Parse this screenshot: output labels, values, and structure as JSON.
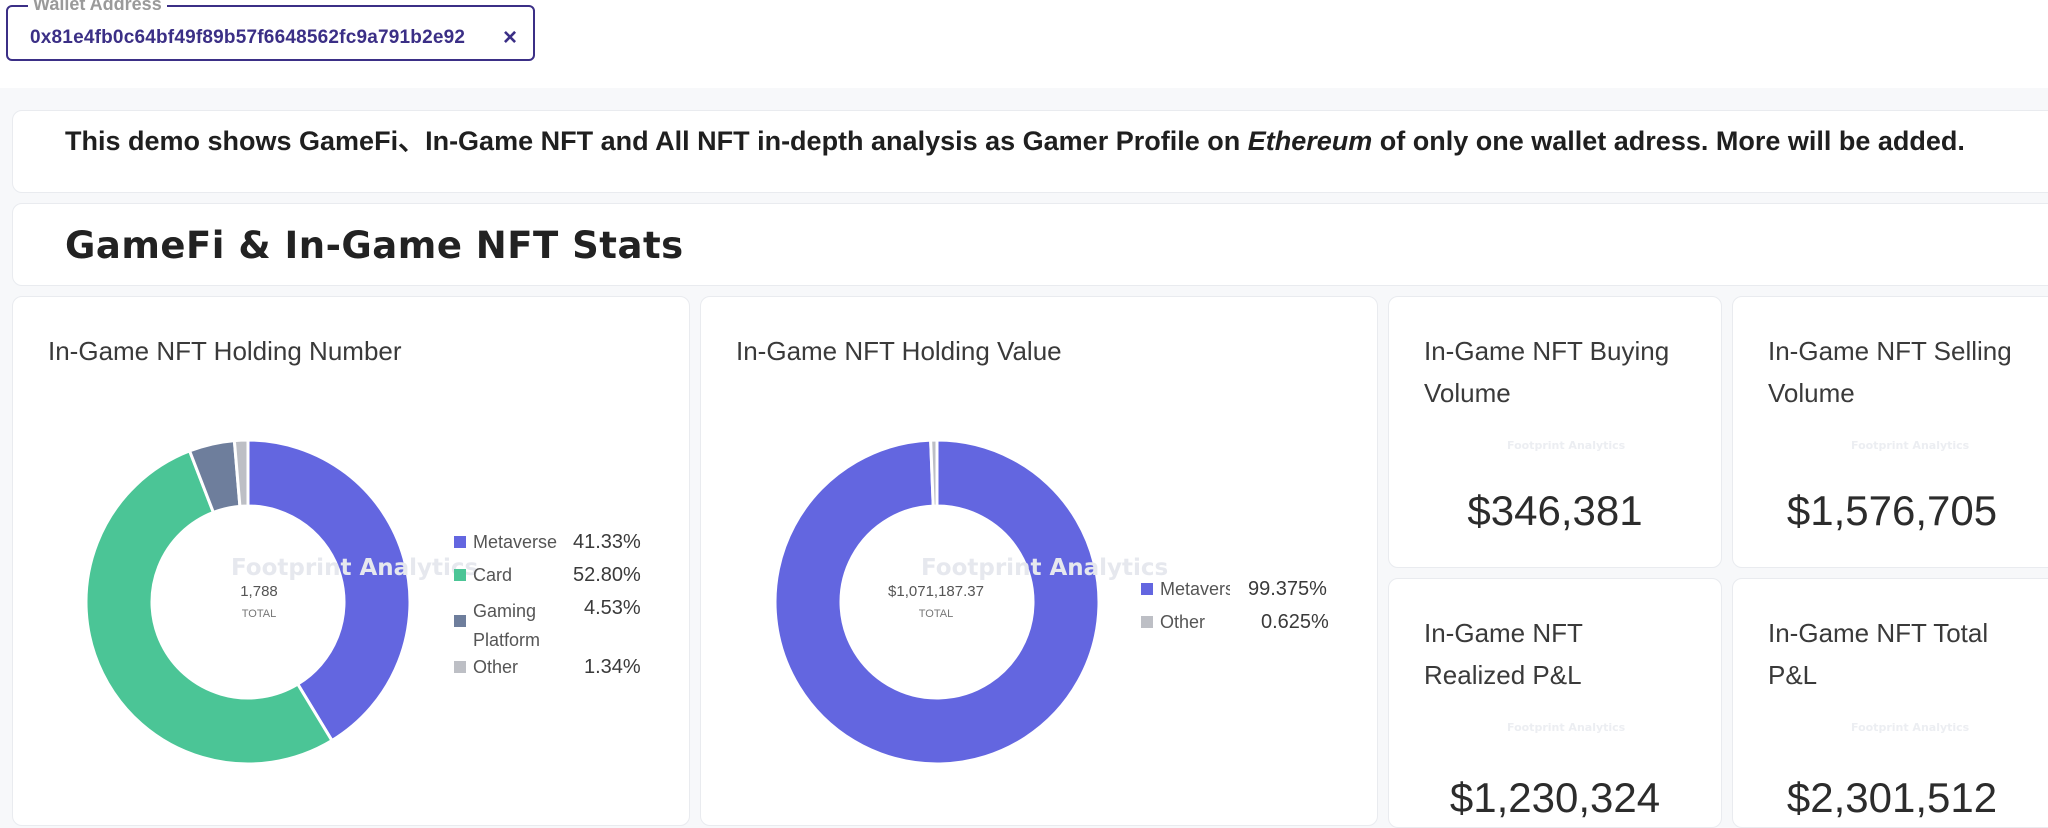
{
  "wallet": {
    "legend": "Wallet Address",
    "value": "0x81e4fb0c64bf49f89b57f6648562fc9a791b2e92",
    "clear_icon": "×"
  },
  "intro": {
    "before": "This demo shows GameFi、In-Game NFT and All NFT in-depth analysis as Gamer Profile on ",
    "chain": "Ethereum",
    "after": " of only one wallet adress. More will be added."
  },
  "section": {
    "title": "GameFi & In-Game NFT Stats"
  },
  "watermark": "Footprint Analytics",
  "holding_number": {
    "title": "In-Game NFT Holding Number",
    "total_value": "1,788",
    "total_label": "TOTAL",
    "legend": [
      {
        "label": "Metaverse",
        "pct": "41.33%",
        "color": "#6366e0"
      },
      {
        "label": "Card",
        "pct": "52.80%",
        "color": "#4bc596"
      },
      {
        "label": "Gaming Platform",
        "pct": "4.53%",
        "color": "#6e7e9c"
      },
      {
        "label": "Other",
        "pct": "1.34%",
        "color": "#bdbfc5"
      }
    ]
  },
  "holding_value": {
    "title": "In-Game NFT Holding Value",
    "total_value": "$1,071,187.37",
    "total_label": "TOTAL",
    "legend": [
      {
        "label": "Metaverse",
        "pct": "99.375%",
        "color": "#6366e0"
      },
      {
        "label": "Other",
        "pct": "0.625%",
        "color": "#bdbfc5"
      }
    ]
  },
  "stats": [
    {
      "title": "In-Game NFT Buying Volume",
      "value": "$346,381"
    },
    {
      "title": "In-Game NFT Selling Volume",
      "value": "$1,576,705"
    },
    {
      "title": "In-Game NFT Realized P&L",
      "value": "$1,230,324"
    },
    {
      "title": "In-Game NFT Total P&L",
      "value": "$2,301,512"
    }
  ],
  "chart_data": [
    {
      "type": "pie",
      "title": "In-Game NFT Holding Number",
      "categories": [
        "Metaverse",
        "Card",
        "Gaming Platform",
        "Other"
      ],
      "values": [
        41.33,
        52.8,
        4.53,
        1.34
      ],
      "total": "1,788"
    },
    {
      "type": "pie",
      "title": "In-Game NFT Holding Value",
      "categories": [
        "Metaverse",
        "Other"
      ],
      "values": [
        99.375,
        0.625
      ],
      "total": "$1,071,187.37"
    }
  ]
}
